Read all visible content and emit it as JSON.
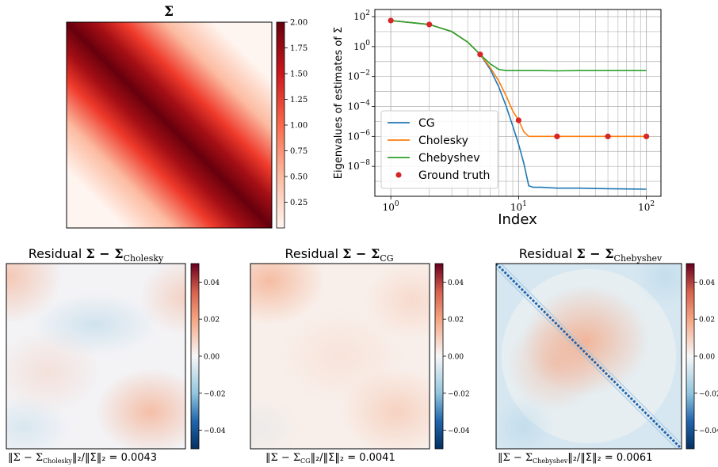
{
  "figure": {
    "sigma_title": "Σ",
    "residuals": [
      {
        "title_prefix": "Residual ",
        "title_expr": "Σ − Σ",
        "title_sub": "Cholesky",
        "footer_left": "‖Σ − Σ",
        "footer_sub": "Cholesky",
        "footer_right": "‖₂/‖Σ‖₂ = 0.0043"
      },
      {
        "title_prefix": "Residual ",
        "title_expr": "Σ − Σ",
        "title_sub": "CG",
        "footer_left": "‖Σ − Σ",
        "footer_sub": "CG",
        "footer_right": "‖₂/‖Σ‖₂ = 0.0041"
      },
      {
        "title_prefix": "Residual ",
        "title_expr": "Σ − Σ",
        "title_sub": "Chebyshev",
        "footer_left": "‖Σ − Σ",
        "footer_sub": "Chebyshev",
        "footer_right": "‖₂/‖Σ‖₂ = 0.0061"
      }
    ]
  },
  "chart_data": [
    {
      "type": "heatmap",
      "title": "Σ",
      "colormap": "Reds",
      "colorbar_ticks": [
        "2.00",
        "1.75",
        "1.50",
        "1.25",
        "1.00",
        "0.75",
        "0.50",
        "0.25"
      ],
      "colorbar_tick_values": [
        2.0,
        1.75,
        1.5,
        1.25,
        1.0,
        0.75,
        0.5,
        0.25
      ],
      "vmin": 0.0,
      "vmax": 2.0,
      "description_values": {
        "diagonal": 2.0,
        "far_corners": 0.0
      }
    },
    {
      "type": "line",
      "xlabel": "Index",
      "ylabel": "Eigenvalues of estimates of Σ",
      "xscale": "log",
      "yscale": "log",
      "xlim": [
        0.75,
        130
      ],
      "ylim": [
        1e-10,
        300
      ],
      "xticks": [
        {
          "v": 1,
          "m": "10",
          "e": "0"
        },
        {
          "v": 10,
          "m": "10",
          "e": "1"
        },
        {
          "v": 100,
          "m": "10",
          "e": "2"
        }
      ],
      "yticks": [
        {
          "v": 100,
          "m": "10",
          "e": "2"
        },
        {
          "v": 1,
          "m": "10",
          "e": "0"
        },
        {
          "v": 0.01,
          "m": "10",
          "e": "−2"
        },
        {
          "v": 0.0001,
          "m": "10",
          "e": "−4"
        },
        {
          "v": 1e-06,
          "m": "10",
          "e": "−6"
        },
        {
          "v": 1e-08,
          "m": "10",
          "e": "−8"
        }
      ],
      "grid": true,
      "legend": "lower-left",
      "series": [
        {
          "name": "CG",
          "color": "#1f77b4",
          "x": [
            1,
            2,
            3,
            4,
            5,
            6,
            7,
            8,
            9,
            10,
            11,
            12,
            13,
            15,
            20,
            30,
            40,
            50,
            70,
            100
          ],
          "y": [
            55,
            30,
            10,
            2,
            0.3,
            0.03,
            0.002,
            0.0001,
            5e-06,
            3e-07,
            1.5e-08,
            5e-10,
            4e-10,
            4e-10,
            3.5e-10,
            3.5e-10,
            3.3e-10,
            3.2e-10,
            3.1e-10,
            3e-10
          ]
        },
        {
          "name": "Cholesky",
          "color": "#ff7f0e",
          "x": [
            1,
            2,
            3,
            4,
            5,
            6,
            7,
            8,
            9,
            10,
            11,
            12,
            15,
            20,
            30,
            50,
            70,
            100
          ],
          "y": [
            55,
            30,
            10,
            2,
            0.3,
            0.04,
            0.005,
            0.0005,
            5e-05,
            1.2e-05,
            2e-06,
            1e-06,
            1e-06,
            1e-06,
            1e-06,
            1e-06,
            1e-06,
            1e-06
          ]
        },
        {
          "name": "Chebyshev",
          "color": "#2ca02c",
          "x": [
            1,
            2,
            3,
            4,
            5,
            6,
            7,
            8,
            10,
            15,
            20,
            30,
            50,
            100
          ],
          "y": [
            55,
            30,
            10,
            2,
            0.3,
            0.07,
            0.03,
            0.025,
            0.025,
            0.025,
            0.024,
            0.025,
            0.025,
            0.025
          ]
        },
        {
          "name": "Ground truth",
          "color": "#d62728",
          "marker": "circle",
          "x": [
            1,
            2,
            5,
            10,
            20,
            50,
            100
          ],
          "y": [
            55,
            30,
            0.3,
            1.2e-05,
            1e-06,
            1e-06,
            1e-06
          ]
        }
      ]
    },
    {
      "type": "heatmap",
      "title": "Residual Σ − Σ_Cholesky",
      "colormap": "RdBu_r",
      "vmin": -0.05,
      "vmax": 0.05,
      "colorbar_ticks": [
        "0.04",
        "0.02",
        "0.00",
        "−0.02",
        "−0.04"
      ],
      "colorbar_tick_values": [
        0.04,
        0.02,
        0.0,
        -0.02,
        -0.04
      ]
    },
    {
      "type": "heatmap",
      "title": "Residual Σ − Σ_CG",
      "colormap": "RdBu_r",
      "vmin": -0.05,
      "vmax": 0.05,
      "colorbar_ticks": [
        "0.04",
        "0.02",
        "0.00",
        "−0.02",
        "−0.04"
      ],
      "colorbar_tick_values": [
        0.04,
        0.02,
        0.0,
        -0.02,
        -0.04
      ]
    },
    {
      "type": "heatmap",
      "title": "Residual Σ − Σ_Chebyshev",
      "colormap": "RdBu_r",
      "vmin": -0.05,
      "vmax": 0.05,
      "colorbar_ticks": [
        "0.04",
        "0.02",
        "0.00",
        "−0.02",
        "−0.04"
      ],
      "colorbar_tick_values": [
        0.04,
        0.02,
        0.0,
        -0.02,
        -0.04
      ]
    }
  ]
}
